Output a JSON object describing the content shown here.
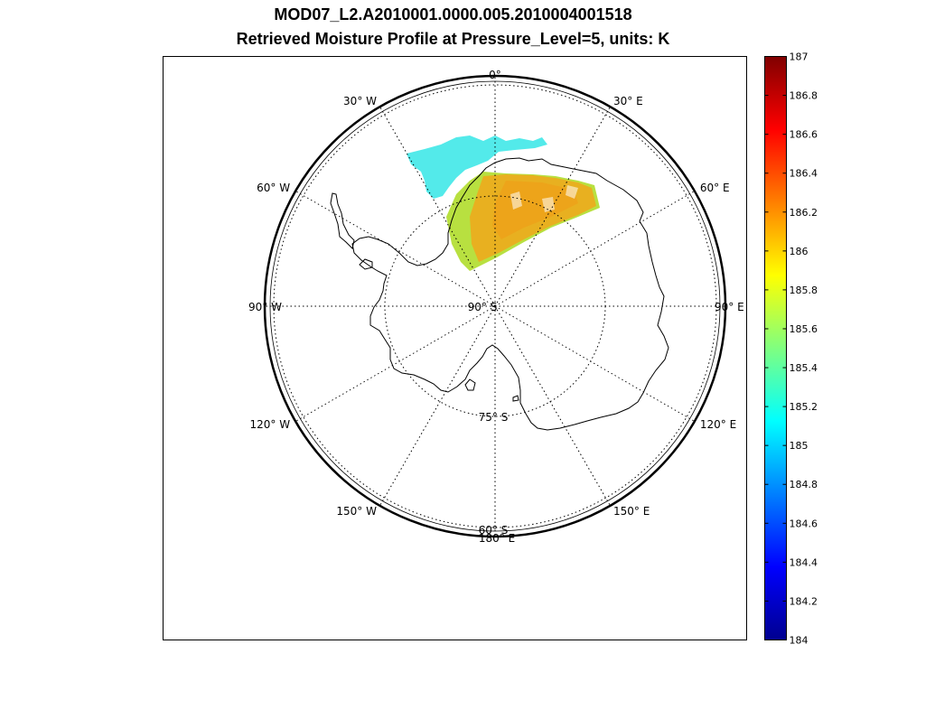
{
  "title": {
    "line1": "MOD07_L2.A2010001.0000.005.2010004001518",
    "line2": "Retrieved Moisture Profile at Pressure_Level=5, units: K"
  },
  "map": {
    "projection": "south polar stereographic",
    "meridian_labels": [
      {
        "lon": 0,
        "text": "0°"
      },
      {
        "lon": 30,
        "text": "30° E"
      },
      {
        "lon": 60,
        "text": "60° E"
      },
      {
        "lon": 90,
        "text": "90° E"
      },
      {
        "lon": 120,
        "text": "120° E"
      },
      {
        "lon": 150,
        "text": "150° E"
      },
      {
        "lon": 180,
        "text": "180° E"
      },
      {
        "lon": -150,
        "text": "150° W"
      },
      {
        "lon": -120,
        "text": "120° W"
      },
      {
        "lon": -90,
        "text": "90° W"
      },
      {
        "lon": -60,
        "text": "60° W"
      },
      {
        "lon": -30,
        "text": "30° W"
      }
    ],
    "parallel_labels": [
      {
        "lat": -90,
        "text": "90° S"
      },
      {
        "lat": -75,
        "text": "75° S"
      },
      {
        "lat": -60,
        "text": "60° S"
      }
    ]
  },
  "colorbar": {
    "min": 184,
    "max": 187,
    "ticks": [
      "184",
      "184.2",
      "184.4",
      "184.6",
      "184.8",
      "185",
      "185.2",
      "185.4",
      "185.6",
      "185.8",
      "186",
      "186.2",
      "186.4",
      "186.6",
      "186.8",
      "187"
    ],
    "colormap": "jet"
  },
  "colors": {
    "swath_main": "#e8b020",
    "swath_edge": "#b8e040",
    "swath_cyan": "#40e8e8"
  }
}
